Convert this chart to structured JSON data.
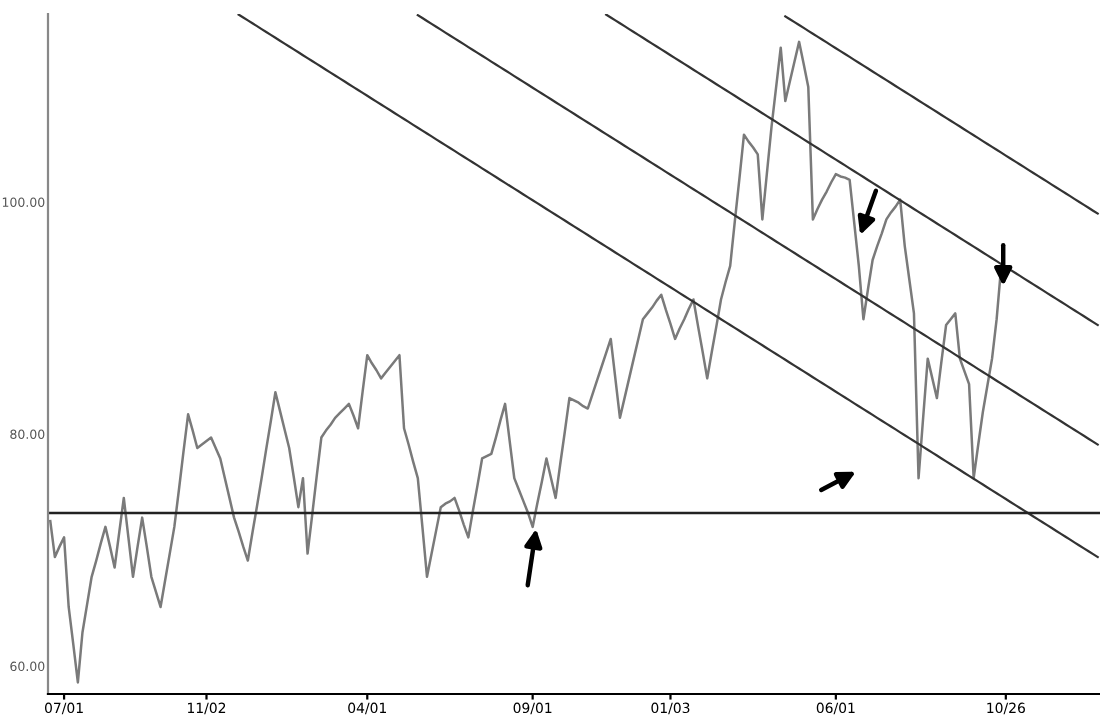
{
  "chart_data": {
    "type": "line",
    "categories": [
      null,
      null,
      null,
      "07/01",
      null,
      null,
      null,
      null,
      null,
      null,
      null,
      null,
      null,
      null,
      null,
      null,
      null,
      null,
      null,
      null,
      null,
      null,
      null,
      null,
      null,
      null,
      null,
      null,
      null,
      null,
      null,
      null,
      null,
      null,
      "11/02",
      null,
      null,
      null,
      null,
      null,
      null,
      null,
      null,
      null,
      null,
      null,
      null,
      null,
      null,
      null,
      null,
      null,
      null,
      null,
      null,
      null,
      null,
      null,
      null,
      null,
      null,
      null,
      null,
      null,
      null,
      null,
      null,
      null,
      null,
      "04/01",
      null,
      null,
      null,
      null,
      null,
      null,
      null,
      null,
      null,
      null,
      null,
      null,
      null,
      null,
      null,
      null,
      null,
      null,
      null,
      null,
      null,
      null,
      null,
      null,
      null,
      null,
      null,
      null,
      null,
      null,
      null,
      null,
      null,
      null,
      null,
      "09/01",
      null,
      null,
      null,
      null,
      null,
      null,
      null,
      null,
      null,
      null,
      null,
      null,
      null,
      null,
      null,
      null,
      null,
      null,
      null,
      null,
      null,
      null,
      null,
      null,
      null,
      null,
      null,
      null,
      null,
      "01/03",
      null,
      null,
      null,
      null,
      null,
      null,
      null,
      null,
      null,
      null,
      null,
      null,
      null,
      null,
      null,
      null,
      null,
      null,
      null,
      null,
      null,
      null,
      null,
      null,
      null,
      null,
      null,
      null,
      null,
      null,
      null,
      null,
      null,
      null,
      null,
      "06/01",
      null,
      null,
      null,
      null,
      null,
      null,
      null,
      null,
      null,
      null,
      null,
      null,
      null,
      null,
      null,
      null,
      null,
      null,
      null,
      null,
      null,
      null,
      null,
      null,
      null,
      null,
      null,
      null,
      null,
      null,
      null,
      null,
      null,
      null,
      null,
      null,
      "10/26",
      null,
      null,
      null,
      null,
      null,
      null,
      null,
      null,
      null,
      null,
      null,
      null,
      null,
      null,
      null,
      null,
      null,
      null,
      null,
      null
    ],
    "series": [
      {
        "color": "#7a7a7a",
        "values": [
          72.5,
          69.4,
          70.3,
          71.1,
          65.1,
          61.9,
          58.6,
          62.9,
          65.3,
          67.7,
          69.1,
          70.6,
          72,
          70.3,
          68.5,
          71.5,
          74.5,
          71.1,
          67.7,
          70.3,
          72.8,
          70.3,
          67.7,
          66.4,
          65.1,
          67.4,
          69.7,
          72,
          75.2,
          78.5,
          81.7,
          80.3,
          78.8,
          79.1,
          79.4,
          79.7,
          78.8,
          77.9,
          76.2,
          74.5,
          72.8,
          71.6,
          70.3,
          69.1,
          71.5,
          73.8,
          76.2,
          78.7,
          81.1,
          83.6,
          82.0,
          80.4,
          78.8,
          76.3,
          73.7,
          76.2,
          69.7,
          73.0,
          76.4,
          79.7,
          80.3,
          80.8,
          81.4,
          81.8,
          82.2,
          82.6,
          81.6,
          80.5,
          83.7,
          86.8,
          86.1,
          85.5,
          84.8,
          85.3,
          85.8,
          86.3,
          86.8,
          80.5,
          79.1,
          77.6,
          76.2,
          72.0,
          67.7,
          69.7,
          71.7,
          73.7,
          74.0,
          74.2,
          74.5,
          73.4,
          72.2,
          71.1,
          73.4,
          75.6,
          77.9,
          78.1,
          78.3,
          79.7,
          81.2,
          82.6,
          79.4,
          76.2,
          75.2,
          74.2,
          73.2,
          72,
          74.0,
          75.9,
          77.9,
          76.2,
          74.5,
          77.4,
          80.2,
          83.1,
          82.9,
          82.7,
          82.4,
          82.2,
          83.4,
          84.6,
          85.8,
          87.0,
          88.2,
          84.8,
          81.4,
          83.1,
          84.8,
          86.5,
          88.2,
          89.9,
          90.4,
          90.9,
          91.5,
          92,
          90.7,
          89.5,
          88.2,
          89.1,
          89.9,
          90.8,
          91.6,
          89.3,
          87.1,
          84.8,
          87.1,
          89.3,
          91.6,
          93.1,
          94.5,
          98.3,
          102.0,
          105.8,
          105.2,
          104.7,
          104.1,
          98.5,
          102.5,
          106.5,
          109.9,
          113.3,
          108.7,
          110.4,
          112.1,
          113.8,
          111.9,
          109.9,
          98.5,
          99.4,
          100.2,
          100.9,
          101.7,
          102.4,
          102.2,
          102.1,
          101.9,
          98.2,
          94.5,
          89.9,
          92.5,
          95,
          96.2,
          97.3,
          98.5,
          99.1,
          99.6,
          100.2,
          96.2,
          93.3,
          90.4,
          76.2,
          81.4,
          86.5,
          84.8,
          83.1,
          86.3,
          89.4,
          89.9,
          90.4,
          86.5,
          85.4,
          84.3,
          76.2,
          79.1,
          81.9,
          84.2,
          86.5,
          89.9,
          94.5,
          null,
          null,
          null,
          null,
          null,
          null,
          null,
          null,
          null,
          null,
          null,
          null,
          null,
          null,
          null,
          null,
          null,
          null,
          null,
          null,
          null
        ]
      },
      {
        "color": "#333333",
        "values": [
          null,
          null,
          null,
          null,
          null,
          null,
          null,
          null,
          null,
          null,
          null,
          null,
          null,
          null,
          null,
          null,
          null,
          null,
          null,
          null,
          null,
          null,
          null,
          null,
          null,
          null,
          null,
          null,
          null,
          null,
          null,
          null,
          null,
          null,
          null,
          null,
          null,
          null,
          null,
          null,
          null,
          116.15,
          115.9,
          115.65,
          115.4,
          115.15,
          114.9,
          114.65,
          114.4,
          114.15,
          113.9,
          113.65,
          113.4,
          113.15,
          112.9,
          112.65,
          112.4,
          112.15,
          111.9,
          111.65,
          111.4,
          111.15,
          110.9,
          110.65,
          110.4,
          110.15,
          109.9,
          109.65,
          109.4,
          109.15,
          108.9,
          108.65,
          108.4,
          108.15,
          107.9,
          107.65,
          107.4,
          107.15,
          106.9,
          106.65,
          106.4,
          106.15,
          105.9,
          105.65,
          105.4,
          105.15,
          104.9,
          104.65,
          104.4,
          104.15,
          103.9,
          103.65,
          103.4,
          103.15,
          102.9,
          102.65,
          102.4,
          102.15,
          101.9,
          101.65,
          101.4,
          101.15,
          100.9,
          100.65,
          100.4,
          100.15,
          99.9,
          99.65,
          99.4,
          99.15,
          98.9,
          98.65,
          98.4,
          98.15,
          97.9,
          97.65,
          97.4,
          97.15,
          96.9,
          96.65,
          96.4,
          96.15,
          95.9,
          95.65,
          95.4,
          95.15,
          94.9,
          94.65,
          94.4,
          94.15,
          93.9,
          93.65,
          93.4,
          93.15,
          92.9,
          92.65,
          92.4,
          92.15,
          91.9,
          91.65,
          91.4,
          91.15,
          90.9,
          90.65,
          90.4,
          90.15,
          89.9,
          89.65,
          89.4,
          89.15,
          88.9,
          88.65,
          88.4,
          88.15,
          87.9,
          87.65,
          87.4,
          87.15,
          86.9,
          86.65,
          86.4,
          86.15,
          85.9,
          85.65,
          85.4,
          85.15,
          84.9,
          84.65,
          84.4,
          84.15,
          83.9,
          83.65,
          83.4,
          83.15,
          82.9,
          82.65,
          82.4,
          82.15,
          81.9,
          81.65,
          81.4,
          81.15,
          80.9,
          80.65,
          80.4,
          80.15,
          79.9,
          79.65,
          79.4,
          79.15,
          78.9,
          78.65,
          78.4,
          78.15,
          77.9,
          77.65,
          77.4,
          77.15,
          76.9,
          76.65,
          76.4,
          76.15,
          75.9,
          75.65,
          75.4,
          75.15,
          74.9,
          74.65,
          74.4,
          74.15,
          73.9,
          73.65,
          73.4,
          73.15,
          72.9,
          72.65,
          72.4,
          72.15,
          71.9,
          71.65,
          71.4,
          71.15,
          70.9,
          70.65,
          70.4,
          70.15,
          69.9,
          69.65,
          69.4
        ]
      },
      {
        "color": "#333333",
        "values": [
          null,
          null,
          null,
          null,
          null,
          null,
          null,
          null,
          null,
          null,
          null,
          null,
          null,
          null,
          null,
          null,
          null,
          null,
          null,
          null,
          null,
          null,
          null,
          null,
          null,
          null,
          null,
          null,
          null,
          null,
          null,
          null,
          null,
          null,
          null,
          null,
          null,
          null,
          null,
          null,
          null,
          null,
          null,
          null,
          null,
          null,
          null,
          null,
          null,
          null,
          null,
          null,
          null,
          null,
          null,
          null,
          null,
          null,
          null,
          null,
          null,
          null,
          null,
          null,
          null,
          null,
          null,
          null,
          null,
          null,
          null,
          null,
          null,
          null,
          null,
          null,
          null,
          null,
          null,
          null,
          116.1,
          115.85,
          115.6,
          115.35,
          115.1,
          114.85,
          114.6,
          114.35,
          114.1,
          113.85,
          113.6,
          113.35,
          113.1,
          112.85,
          112.6,
          112.35,
          112.1,
          111.85,
          111.6,
          111.35,
          111.1,
          110.85,
          110.6,
          110.35,
          110.1,
          109.85,
          109.6,
          109.35,
          109.1,
          108.85,
          108.6,
          108.35,
          108.1,
          107.85,
          107.6,
          107.35,
          107.1,
          106.85,
          106.6,
          106.35,
          106.1,
          105.85,
          105.6,
          105.35,
          105.1,
          104.85,
          104.6,
          104.35,
          104.1,
          103.85,
          103.6,
          103.35,
          103.1,
          102.85,
          102.6,
          102.35,
          102.1,
          101.85,
          101.6,
          101.35,
          101.1,
          100.85,
          100.6,
          100.35,
          100.1,
          99.85,
          99.6,
          99.35,
          99.1,
          98.85,
          98.6,
          98.35,
          98.1,
          97.85,
          97.6,
          97.35,
          97.1,
          96.85,
          96.6,
          96.35,
          96.1,
          95.85,
          95.6,
          95.35,
          95.1,
          94.85,
          94.6,
          94.35,
          94.1,
          93.85,
          93.6,
          93.35,
          93.1,
          92.85,
          92.6,
          92.35,
          92.1,
          91.85,
          91.6,
          91.35,
          91.1,
          90.85,
          90.6,
          90.35,
          90.1,
          89.85,
          89.6,
          89.35,
          89.1,
          88.85,
          88.6,
          88.35,
          88.1,
          87.85,
          87.6,
          87.35,
          87.1,
          86.85,
          86.6,
          86.35,
          86.1,
          85.85,
          85.6,
          85.35,
          85.1,
          84.85,
          84.6,
          84.35,
          84.1,
          83.85,
          83.6,
          83.35,
          83.1,
          82.85,
          82.6,
          82.35,
          82.1,
          81.85,
          81.6,
          81.35,
          81.1,
          80.85,
          80.6,
          80.35,
          80.1,
          79.85,
          79.6,
          79.35,
          79.1
        ]
      },
      {
        "color": "#333333",
        "values": [
          null,
          null,
          null,
          null,
          null,
          null,
          null,
          null,
          null,
          null,
          null,
          null,
          null,
          null,
          null,
          null,
          null,
          null,
          null,
          null,
          null,
          null,
          null,
          null,
          null,
          null,
          null,
          null,
          null,
          null,
          null,
          null,
          null,
          null,
          null,
          null,
          null,
          null,
          null,
          null,
          null,
          null,
          null,
          null,
          null,
          null,
          null,
          null,
          null,
          null,
          null,
          null,
          null,
          null,
          null,
          null,
          null,
          null,
          null,
          null,
          null,
          null,
          null,
          null,
          null,
          null,
          null,
          null,
          null,
          null,
          null,
          null,
          null,
          null,
          null,
          null,
          null,
          null,
          null,
          null,
          null,
          null,
          null,
          null,
          null,
          null,
          null,
          null,
          null,
          null,
          null,
          null,
          null,
          null,
          null,
          null,
          null,
          null,
          null,
          null,
          null,
          null,
          null,
          null,
          null,
          null,
          null,
          null,
          null,
          null,
          null,
          null,
          null,
          null,
          null,
          null,
          null,
          null,
          null,
          null,
          null,
          116.15,
          115.9,
          115.65,
          115.4,
          115.15,
          114.9,
          114.65,
          114.4,
          114.15,
          113.9,
          113.65,
          113.4,
          113.15,
          112.9,
          112.65,
          112.4,
          112.15,
          111.9,
          111.65,
          111.4,
          111.15,
          110.9,
          110.65,
          110.4,
          110.15,
          109.9,
          109.65,
          109.4,
          109.15,
          108.9,
          108.65,
          108.4,
          108.15,
          107.9,
          107.65,
          107.4,
          107.15,
          106.9,
          106.65,
          106.4,
          106.15,
          105.9,
          105.65,
          105.4,
          105.15,
          104.9,
          104.65,
          104.4,
          104.15,
          103.9,
          103.65,
          103.4,
          103.15,
          102.9,
          102.65,
          102.4,
          102.15,
          101.9,
          101.65,
          101.4,
          101.15,
          100.9,
          100.65,
          100.4,
          100.15,
          99.9,
          99.65,
          99.4,
          99.15,
          98.9,
          98.65,
          98.4,
          98.15,
          97.9,
          97.65,
          97.4,
          97.15,
          96.9,
          96.65,
          96.4,
          96.15,
          95.9,
          95.65,
          95.4,
          95.15,
          94.9,
          94.65,
          94.4,
          94.15,
          93.9,
          93.65,
          93.4,
          93.15,
          92.9,
          92.65,
          92.4,
          92.15,
          91.9,
          91.65,
          91.4,
          91.15,
          90.9,
          90.65,
          90.4,
          90.15,
          89.9,
          89.65,
          89.4
        ]
      },
      {
        "color": "#333333",
        "values": [
          null,
          null,
          null,
          null,
          null,
          null,
          null,
          null,
          null,
          null,
          null,
          null,
          null,
          null,
          null,
          null,
          null,
          null,
          null,
          null,
          null,
          null,
          null,
          null,
          null,
          null,
          null,
          null,
          null,
          null,
          null,
          null,
          null,
          null,
          null,
          null,
          null,
          null,
          null,
          null,
          null,
          null,
          null,
          null,
          null,
          null,
          null,
          null,
          null,
          null,
          null,
          null,
          null,
          null,
          null,
          null,
          null,
          null,
          null,
          null,
          null,
          null,
          null,
          null,
          null,
          null,
          null,
          null,
          null,
          null,
          null,
          null,
          null,
          null,
          null,
          null,
          null,
          null,
          null,
          null,
          null,
          null,
          null,
          null,
          null,
          null,
          null,
          null,
          null,
          null,
          null,
          null,
          null,
          null,
          null,
          null,
          null,
          null,
          null,
          null,
          null,
          null,
          null,
          null,
          null,
          null,
          null,
          null,
          null,
          null,
          null,
          null,
          null,
          null,
          null,
          null,
          null,
          null,
          null,
          null,
          null,
          null,
          null,
          null,
          null,
          null,
          null,
          null,
          null,
          null,
          null,
          null,
          null,
          null,
          null,
          null,
          null,
          null,
          null,
          null,
          null,
          null,
          null,
          null,
          null,
          null,
          null,
          null,
          null,
          null,
          null,
          null,
          null,
          null,
          null,
          null,
          null,
          null,
          null,
          null,
          116.0,
          115.75,
          115.5,
          115.25,
          115.0,
          114.75,
          114.5,
          114.25,
          114.0,
          113.75,
          113.5,
          113.25,
          113.0,
          112.75,
          112.5,
          112.25,
          112.0,
          111.75,
          111.5,
          111.25,
          111.0,
          110.75,
          110.5,
          110.25,
          110.0,
          109.75,
          109.5,
          109.25,
          109.0,
          108.75,
          108.5,
          108.25,
          108.0,
          107.75,
          107.5,
          107.25,
          107.0,
          106.75,
          106.5,
          106.25,
          106.0,
          105.75,
          105.5,
          105.25,
          105.0,
          104.75,
          104.5,
          104.25,
          104.0,
          103.75,
          103.5,
          103.25,
          103.0,
          102.75,
          102.5,
          102.25,
          102.0,
          101.75,
          101.5,
          101.25,
          101.0,
          100.75,
          100.5,
          100.25,
          100.0,
          99.75,
          99.5,
          99.25,
          99.0
        ]
      }
    ],
    "ylim": [
      57.6,
      116.2
    ],
    "yticks": [
      {
        "value": 60,
        "label": "60.00"
      },
      {
        "value": 80,
        "label": "80.00"
      },
      {
        "value": 100,
        "label": "100.00"
      }
    ],
    "ref_lines": [
      {
        "axis": "y",
        "value": 73.2,
        "color": "#222222"
      }
    ],
    "grid": false
  }
}
